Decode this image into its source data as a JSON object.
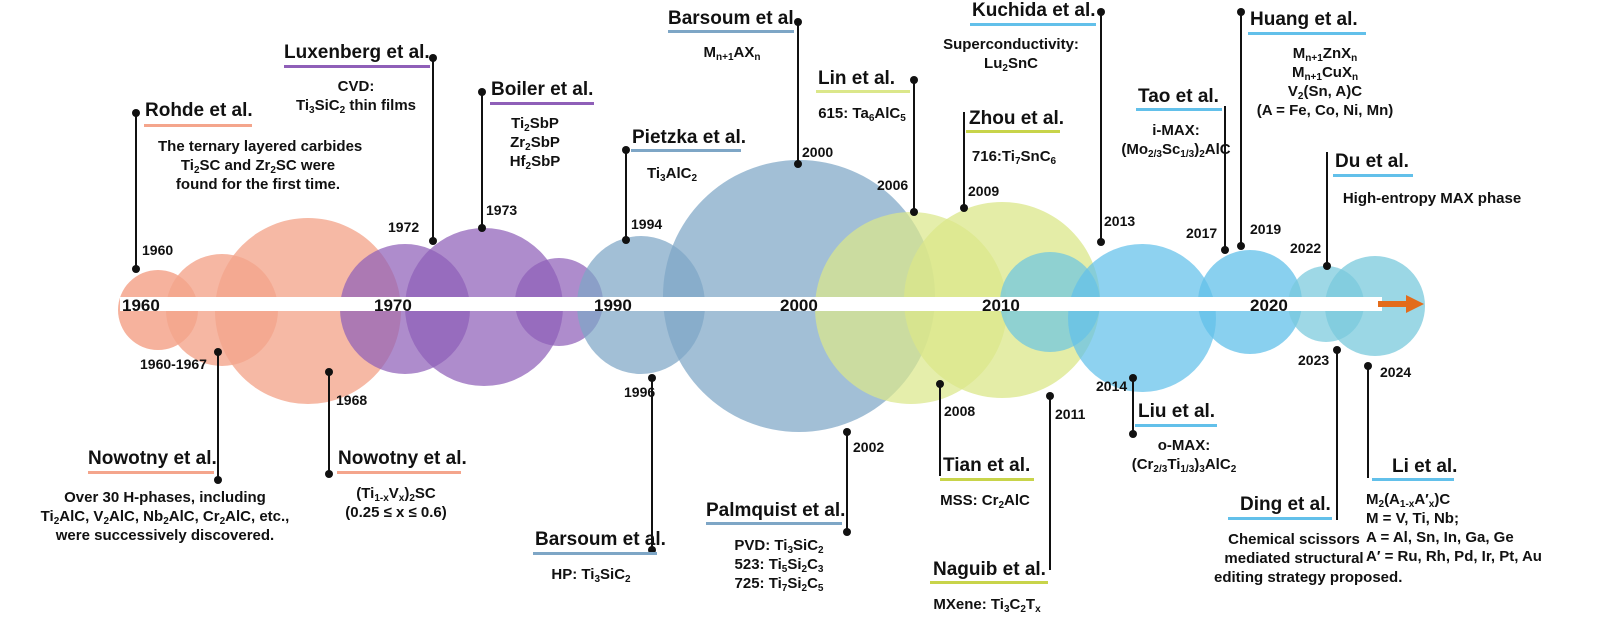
{
  "axis": {
    "labels": [
      "1960",
      "1970",
      "1990",
      "2000",
      "2010",
      "2020"
    ],
    "arrow_color": "#e36c1b"
  },
  "colors": {
    "salmon": "#f4a58c",
    "purple": "#8f5fb8",
    "steel": "#7ea6c6",
    "lime": "#dbe78a",
    "sky": "#62c0ea",
    "teal": "#79c9dc"
  },
  "events": [
    {
      "id": "rohde",
      "year": "1960",
      "author": "Rohde et al.",
      "lines": [
        "The ternary layered carbides",
        "Ti<sub>2</sub>SC and Zr<sub>2</sub>SC were",
        "found for the first time."
      ]
    },
    {
      "id": "nowotny1",
      "year": "1960-1967",
      "author": "Nowotny et al.",
      "lines": [
        "Over 30 H-phases, including",
        "Ti<sub>2</sub>AlC, V<sub>2</sub>AlC, Nb<sub>2</sub>AlC, Cr<sub>2</sub>AlC, etc.,",
        "were successively discovered."
      ]
    },
    {
      "id": "nowotny2",
      "year": "1968",
      "author": "Nowotny et al.",
      "lines": [
        "(Ti<sub>1-x</sub>V<sub>x</sub>)<sub>2</sub>SC",
        "(0.25 ≤ x ≤ 0.6)"
      ]
    },
    {
      "id": "luxenberg",
      "year": "1972",
      "author": "Luxenberg et al.",
      "lines": [
        "CVD:",
        "Ti<sub>3</sub>SiC<sub>2</sub> thin films"
      ]
    },
    {
      "id": "boiler",
      "year": "1973",
      "author": "Boiler et al.",
      "lines": [
        "Ti<sub>2</sub>SbP",
        "Zr<sub>2</sub>SbP",
        "Hf<sub>2</sub>SbP"
      ]
    },
    {
      "id": "pietzka",
      "year": "1994",
      "author": "Pietzka et al.",
      "lines": [
        "Ti<sub>3</sub>AlC<sub>2</sub>"
      ]
    },
    {
      "id": "barsoum96",
      "year": "1996",
      "author": "Barsoum et al.",
      "lines": [
        "HP: Ti<sub>3</sub>SiC<sub>2</sub>"
      ]
    },
    {
      "id": "barsoum00",
      "year": "2000",
      "author": "Barsoum et al.",
      "lines": [
        "M<sub>n+1</sub>AX<sub>n</sub>"
      ]
    },
    {
      "id": "palmquist",
      "year": "2002",
      "author": "Palmquist et al.",
      "lines": [
        "PVD: Ti<sub>3</sub>SiC<sub>2</sub>",
        "523: Ti<sub>5</sub>Si<sub>2</sub>C<sub>3</sub>",
        "725: Ti<sub>7</sub>Si<sub>2</sub>C<sub>5</sub>"
      ]
    },
    {
      "id": "lin",
      "year": "2006",
      "author": "Lin et al.",
      "lines": [
        "615: Ta<sub>6</sub>AlC<sub>5</sub>"
      ]
    },
    {
      "id": "tian",
      "year": "2008",
      "author": "Tian et al.",
      "lines": [
        "MSS: Cr<sub>2</sub>AlC"
      ]
    },
    {
      "id": "zhou",
      "year": "2009",
      "author": "Zhou et al.",
      "lines": [
        "716:Ti<sub>7</sub>SnC<sub>6</sub>"
      ]
    },
    {
      "id": "naguib",
      "year": "2011",
      "author": "Naguib et al.",
      "lines": [
        "MXene: Ti<sub>3</sub>C<sub>2</sub>T<sub>x</sub>"
      ]
    },
    {
      "id": "kuchida",
      "year": "2013",
      "author": "Kuchida et al.",
      "lines": [
        "Superconductivity:",
        "Lu<sub>2</sub>SnC"
      ]
    },
    {
      "id": "liu",
      "year": "2014",
      "author": "Liu et al.",
      "lines": [
        "o-MAX:",
        "(Cr<sub>2/3</sub>Ti<sub>1/3</sub>)<sub>3</sub>AlC<sub>2</sub>"
      ]
    },
    {
      "id": "tao",
      "year": "2017",
      "author": "Tao et al.",
      "lines": [
        "i-MAX:",
        "(Mo<sub>2/3</sub>Sc<sub>1/3</sub>)<sub>2</sub>AlC"
      ]
    },
    {
      "id": "huang",
      "year": "2019",
      "author": "Huang et al.",
      "lines": [
        "M<sub>n+1</sub>ZnX<sub>n</sub>",
        "M<sub>n+1</sub>CuX<sub>n</sub>",
        "V<sub>2</sub>(Sn, A)C",
        "(A = Fe, Co, Ni, Mn)"
      ]
    },
    {
      "id": "du",
      "year": "2022",
      "author": "Du et al.",
      "lines": [
        "High-entropy MAX phase"
      ]
    },
    {
      "id": "ding",
      "year": "2023",
      "author": "Ding et al.",
      "lines": [
        "Chemical scissors",
        "mediated structural",
        "editing strategy proposed."
      ]
    },
    {
      "id": "li",
      "year": "2024",
      "author": "Li et al.",
      "lines": [
        "M<sub>2</sub>(A<sub>1-x</sub>A′<sub>x</sub>)C",
        "M = V, Ti, Nb;",
        "A = Al, Sn, In, Ga, Ge",
        "A′ = Ru, Rh, Pd, Ir, Pt, Au"
      ]
    }
  ]
}
